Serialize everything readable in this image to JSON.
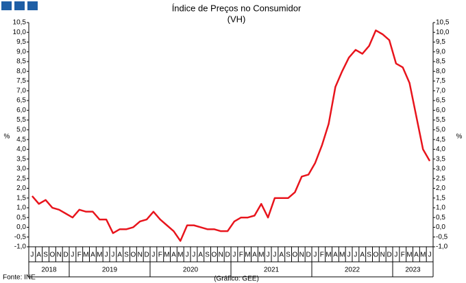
{
  "chart_data": {
    "type": "line",
    "title": "Índice de Preços no Consumidor",
    "subtitle": "(VH)",
    "y_label": "%",
    "source": "Fonte: INE",
    "credit": "(Gráfico: GEE)",
    "categories": [
      "J",
      "A",
      "S",
      "O",
      "N",
      "D",
      "J",
      "F",
      "M",
      "A",
      "M",
      "J",
      "J",
      "A",
      "S",
      "O",
      "N",
      "D",
      "J",
      "F",
      "M",
      "A",
      "M",
      "J",
      "J",
      "A",
      "S",
      "O",
      "N",
      "D",
      "J",
      "F",
      "M",
      "A",
      "M",
      "J",
      "J",
      "A",
      "S",
      "O",
      "N",
      "D",
      "J",
      "F",
      "M",
      "A",
      "M",
      "J",
      "J",
      "A",
      "S",
      "O",
      "N",
      "D",
      "J",
      "F",
      "M",
      "A",
      "M",
      "J"
    ],
    "years": [
      "2018",
      "2019",
      "2020",
      "2021",
      "2022",
      "2023"
    ],
    "series": [
      {
        "name": "VH",
        "color": "#e8141c",
        "values": [
          1.6,
          1.2,
          1.4,
          1.0,
          0.9,
          0.7,
          0.5,
          0.9,
          0.8,
          0.8,
          0.4,
          0.4,
          -0.3,
          -0.1,
          -0.1,
          0.0,
          0.3,
          0.4,
          0.8,
          0.4,
          0.1,
          -0.2,
          -0.7,
          0.1,
          0.1,
          0.0,
          -0.1,
          -0.1,
          -0.2,
          -0.2,
          0.3,
          0.5,
          0.5,
          0.6,
          1.2,
          0.5,
          1.5,
          1.5,
          1.5,
          1.8,
          2.6,
          2.7,
          3.3,
          4.2,
          5.3,
          7.2,
          8.0,
          8.7,
          9.1,
          8.9,
          9.3,
          10.1,
          9.9,
          9.6,
          8.4,
          8.2,
          7.4,
          5.7,
          4.0,
          3.4
        ]
      }
    ],
    "ylim": [
      -1.0,
      10.5
    ],
    "yticks": [
      {
        "value": -1.0,
        "label": "-1,0"
      },
      {
        "value": -0.5,
        "label": "-0,5"
      },
      {
        "value": 0,
        "label": "0,0"
      },
      {
        "value": 0.5,
        "label": "0,5"
      },
      {
        "value": 1.0,
        "label": "1,0"
      },
      {
        "value": 1.5,
        "label": "1,5"
      },
      {
        "value": 2.0,
        "label": "2,0"
      },
      {
        "value": 2.5,
        "label": "2,5"
      },
      {
        "value": 3.0,
        "label": "3,0"
      },
      {
        "value": 3.5,
        "label": "3,5"
      },
      {
        "value": 4.0,
        "label": "4,0"
      },
      {
        "value": 4.5,
        "label": "4,5"
      },
      {
        "value": 5.0,
        "label": "5,0"
      },
      {
        "value": 5.5,
        "label": "5,5"
      },
      {
        "value": 6.0,
        "label": "6,0"
      },
      {
        "value": 6.5,
        "label": "6,5"
      },
      {
        "value": 7.0,
        "label": "7,0"
      },
      {
        "value": 7.5,
        "label": "7,5"
      },
      {
        "value": 8.0,
        "label": "8,0"
      },
      {
        "value": 8.5,
        "label": "8,5"
      },
      {
        "value": 9.0,
        "label": "9,0"
      },
      {
        "value": 9.5,
        "label": "9,5"
      },
      {
        "value": 10.0,
        "label": "10,0"
      },
      {
        "value": 10.5,
        "label": "10,5"
      }
    ],
    "grid": false
  }
}
